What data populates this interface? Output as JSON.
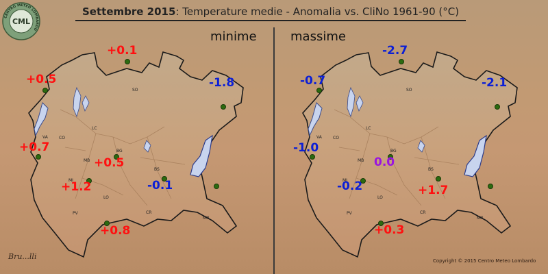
{
  "title": {
    "bold": "Settembre 2015",
    "rest": ": Temperature medie - Anomalia vs. CliNo 1961-90 (°C)"
  },
  "logo": {
    "text": "CML",
    "ring_text": "CENTRO METEO LOMBARDO"
  },
  "panels": [
    {
      "label": "minime",
      "values": [
        "+0.1",
        "+0.5",
        "-1.8",
        "+0.7",
        "+0.5",
        "+1.2",
        "-0.1",
        "+0.8"
      ]
    },
    {
      "label": "massime",
      "values": [
        "-2.7",
        "-0.7",
        "-2.1",
        "-1.0",
        "0.0",
        "-0.2",
        "+1.7",
        "+0.3"
      ]
    }
  ],
  "cities": [
    "SO",
    "VA",
    "CO",
    "LC",
    "MB",
    "BG",
    "BS",
    "MI",
    "LO",
    "CR",
    "PV",
    "MN"
  ],
  "signature": "Bru...lli",
  "copyright": "Copyright © 2015 Centro Meteo Lombardo",
  "colors": {
    "positive": "#ff1010",
    "negative": "#0b1fd6",
    "zero": "#9a14e0",
    "station": "#2c6b10",
    "lake": "#c8d4ee"
  }
}
